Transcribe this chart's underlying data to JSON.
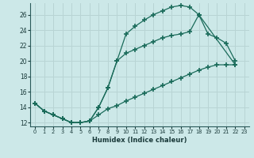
{
  "xlabel": "Humidex (Indice chaleur)",
  "bg_color": "#cce8e8",
  "grid_color": "#b8d4d4",
  "line_color": "#1a6b5a",
  "xlim": [
    -0.5,
    23.5
  ],
  "ylim": [
    11.5,
    27.5
  ],
  "xticks": [
    0,
    1,
    2,
    3,
    4,
    5,
    6,
    7,
    8,
    9,
    10,
    11,
    12,
    13,
    14,
    15,
    16,
    17,
    18,
    19,
    20,
    21,
    22,
    23
  ],
  "yticks": [
    12,
    14,
    16,
    18,
    20,
    22,
    24,
    26
  ],
  "curve1_x": [
    0,
    1,
    2,
    3,
    4,
    5,
    6,
    7,
    8,
    9,
    10,
    11,
    12,
    13,
    14,
    15,
    16,
    17,
    18,
    22
  ],
  "curve1_y": [
    14.5,
    13.5,
    13.0,
    12.5,
    12.0,
    12.0,
    12.2,
    14.0,
    16.5,
    20.0,
    23.5,
    24.5,
    25.3,
    26.0,
    26.5,
    27.0,
    27.2,
    27.0,
    26.0,
    19.5
  ],
  "curve2_x": [
    0,
    1,
    2,
    3,
    4,
    5,
    6,
    7,
    8,
    9,
    10,
    11,
    12,
    13,
    14,
    15,
    16,
    17,
    18,
    19,
    20,
    21,
    22
  ],
  "curve2_y": [
    14.5,
    13.5,
    13.0,
    12.5,
    12.0,
    12.0,
    12.2,
    14.0,
    16.5,
    20.0,
    21.0,
    21.5,
    22.0,
    22.5,
    23.0,
    23.3,
    23.5,
    23.8,
    26.0,
    23.5,
    23.0,
    22.3,
    20.0
  ],
  "curve3_x": [
    0,
    1,
    2,
    3,
    4,
    5,
    6,
    7,
    8,
    9,
    10,
    11,
    12,
    13,
    14,
    15,
    16,
    17,
    18,
    19,
    20,
    21,
    22
  ],
  "curve3_y": [
    14.5,
    13.5,
    13.0,
    12.5,
    12.0,
    12.0,
    12.2,
    13.0,
    13.8,
    14.2,
    14.8,
    15.3,
    15.8,
    16.3,
    16.8,
    17.3,
    17.8,
    18.3,
    18.8,
    19.2,
    19.5,
    19.5,
    19.5
  ]
}
